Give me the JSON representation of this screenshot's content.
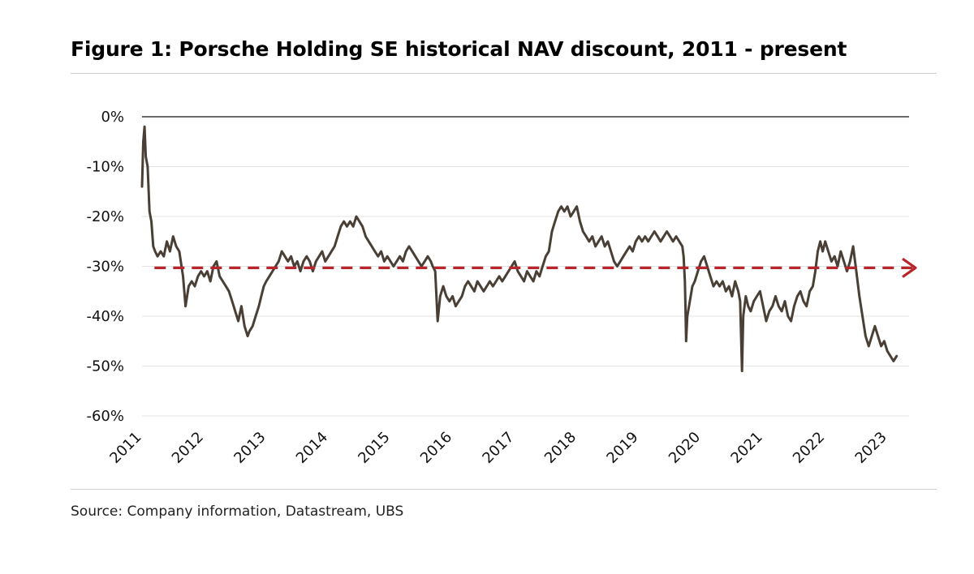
{
  "header": {
    "title": "Figure 1: Porsche Holding SE historical NAV discount, 2011 - present"
  },
  "footer": {
    "source": "Source: Company information, Datastream, UBS"
  },
  "colors": {
    "series": "#4a3f35",
    "average": "#b8262b",
    "grid": "#e3e3e3",
    "zero_line": "#111111"
  },
  "chart_data": {
    "type": "line",
    "title": "Figure 1: Porsche Holding SE historical NAV discount, 2011 - present",
    "xlabel": "",
    "ylabel": "",
    "x_tick_labels": [
      "2011",
      "2012",
      "2013",
      "2014",
      "2015",
      "2016",
      "2017",
      "2018",
      "2019",
      "2020",
      "2021",
      "2022",
      "2023"
    ],
    "y_tick_labels": [
      "0%",
      "-10%",
      "-20%",
      "-30%",
      "-40%",
      "-50%",
      "-60%"
    ],
    "y_ticks": [
      0,
      -10,
      -20,
      -30,
      -40,
      -50,
      -60
    ],
    "xlim": [
      2011.0,
      2023.35
    ],
    "ylim": [
      -60,
      0
    ],
    "grid": true,
    "legend": "none",
    "average_line": {
      "value": -30.3,
      "style": "dashed",
      "arrow": "right"
    },
    "series": [
      {
        "values": [
          [
            2011.0,
            -14
          ],
          [
            2011.02,
            -5
          ],
          [
            2011.04,
            -2
          ],
          [
            2011.06,
            -8
          ],
          [
            2011.09,
            -10
          ],
          [
            2011.12,
            -19
          ],
          [
            2011.15,
            -21
          ],
          [
            2011.18,
            -26
          ],
          [
            2011.21,
            -27
          ],
          [
            2011.25,
            -28
          ],
          [
            2011.3,
            -27
          ],
          [
            2011.35,
            -28
          ],
          [
            2011.4,
            -25
          ],
          [
            2011.45,
            -27
          ],
          [
            2011.5,
            -24
          ],
          [
            2011.55,
            -26
          ],
          [
            2011.6,
            -27
          ],
          [
            2011.66,
            -32
          ],
          [
            2011.7,
            -38
          ],
          [
            2011.75,
            -34
          ],
          [
            2011.8,
            -33
          ],
          [
            2011.85,
            -34
          ],
          [
            2011.9,
            -32
          ],
          [
            2011.95,
            -31
          ],
          [
            2012.0,
            -32
          ],
          [
            2012.05,
            -31
          ],
          [
            2012.1,
            -33
          ],
          [
            2012.15,
            -30
          ],
          [
            2012.2,
            -29
          ],
          [
            2012.25,
            -32
          ],
          [
            2012.3,
            -33
          ],
          [
            2012.35,
            -34
          ],
          [
            2012.4,
            -35
          ],
          [
            2012.45,
            -37
          ],
          [
            2012.5,
            -39
          ],
          [
            2012.55,
            -41
          ],
          [
            2012.6,
            -38
          ],
          [
            2012.65,
            -42
          ],
          [
            2012.7,
            -44
          ],
          [
            2012.73,
            -43
          ],
          [
            2012.78,
            -42
          ],
          [
            2012.83,
            -40
          ],
          [
            2012.88,
            -38
          ],
          [
            2012.92,
            -36
          ],
          [
            2012.96,
            -34
          ],
          [
            2013.0,
            -33
          ],
          [
            2013.05,
            -32
          ],
          [
            2013.1,
            -31
          ],
          [
            2013.15,
            -30
          ],
          [
            2013.2,
            -29
          ],
          [
            2013.25,
            -27
          ],
          [
            2013.3,
            -28
          ],
          [
            2013.35,
            -29
          ],
          [
            2013.4,
            -28
          ],
          [
            2013.45,
            -30
          ],
          [
            2013.5,
            -29
          ],
          [
            2013.55,
            -31
          ],
          [
            2013.6,
            -29
          ],
          [
            2013.65,
            -28
          ],
          [
            2013.7,
            -29
          ],
          [
            2013.75,
            -31
          ],
          [
            2013.8,
            -29
          ],
          [
            2013.85,
            -28
          ],
          [
            2013.9,
            -27
          ],
          [
            2013.95,
            -29
          ],
          [
            2014.0,
            -28
          ],
          [
            2014.05,
            -27
          ],
          [
            2014.1,
            -26
          ],
          [
            2014.15,
            -24
          ],
          [
            2014.2,
            -22
          ],
          [
            2014.25,
            -21
          ],
          [
            2014.3,
            -22
          ],
          [
            2014.35,
            -21
          ],
          [
            2014.4,
            -22
          ],
          [
            2014.45,
            -20
          ],
          [
            2014.5,
            -21
          ],
          [
            2014.55,
            -22
          ],
          [
            2014.6,
            -24
          ],
          [
            2014.65,
            -25
          ],
          [
            2014.7,
            -26
          ],
          [
            2014.75,
            -27
          ],
          [
            2014.8,
            -28
          ],
          [
            2014.85,
            -27
          ],
          [
            2014.9,
            -29
          ],
          [
            2014.95,
            -28
          ],
          [
            2015.0,
            -29
          ],
          [
            2015.05,
            -30
          ],
          [
            2015.1,
            -29
          ],
          [
            2015.15,
            -28
          ],
          [
            2015.2,
            -29
          ],
          [
            2015.25,
            -27
          ],
          [
            2015.3,
            -26
          ],
          [
            2015.35,
            -27
          ],
          [
            2015.4,
            -28
          ],
          [
            2015.45,
            -29
          ],
          [
            2015.5,
            -30
          ],
          [
            2015.55,
            -29
          ],
          [
            2015.6,
            -28
          ],
          [
            2015.65,
            -29
          ],
          [
            2015.68,
            -30
          ],
          [
            2015.72,
            -31
          ],
          [
            2015.76,
            -41
          ],
          [
            2015.8,
            -36
          ],
          [
            2015.85,
            -34
          ],
          [
            2015.9,
            -36
          ],
          [
            2015.95,
            -37
          ],
          [
            2016.0,
            -36
          ],
          [
            2016.05,
            -38
          ],
          [
            2016.1,
            -37
          ],
          [
            2016.15,
            -36
          ],
          [
            2016.2,
            -34
          ],
          [
            2016.25,
            -33
          ],
          [
            2016.3,
            -34
          ],
          [
            2016.35,
            -35
          ],
          [
            2016.4,
            -33
          ],
          [
            2016.45,
            -34
          ],
          [
            2016.5,
            -35
          ],
          [
            2016.55,
            -34
          ],
          [
            2016.6,
            -33
          ],
          [
            2016.65,
            -34
          ],
          [
            2016.7,
            -33
          ],
          [
            2016.75,
            -32
          ],
          [
            2016.8,
            -33
          ],
          [
            2016.85,
            -32
          ],
          [
            2016.9,
            -31
          ],
          [
            2016.95,
            -30
          ],
          [
            2017.0,
            -29
          ],
          [
            2017.05,
            -31
          ],
          [
            2017.1,
            -32
          ],
          [
            2017.15,
            -33
          ],
          [
            2017.2,
            -31
          ],
          [
            2017.25,
            -32
          ],
          [
            2017.3,
            -33
          ],
          [
            2017.35,
            -31
          ],
          [
            2017.4,
            -32
          ],
          [
            2017.45,
            -30
          ],
          [
            2017.5,
            -28
          ],
          [
            2017.55,
            -27
          ],
          [
            2017.6,
            -23
          ],
          [
            2017.65,
            -21
          ],
          [
            2017.7,
            -19
          ],
          [
            2017.75,
            -18
          ],
          [
            2017.8,
            -19
          ],
          [
            2017.85,
            -18
          ],
          [
            2017.9,
            -20
          ],
          [
            2017.95,
            -19
          ],
          [
            2018.0,
            -18
          ],
          [
            2018.05,
            -21
          ],
          [
            2018.1,
            -23
          ],
          [
            2018.15,
            -24
          ],
          [
            2018.2,
            -25
          ],
          [
            2018.25,
            -24
          ],
          [
            2018.3,
            -26
          ],
          [
            2018.35,
            -25
          ],
          [
            2018.4,
            -24
          ],
          [
            2018.45,
            -26
          ],
          [
            2018.5,
            -25
          ],
          [
            2018.55,
            -27
          ],
          [
            2018.6,
            -29
          ],
          [
            2018.65,
            -30
          ],
          [
            2018.7,
            -29
          ],
          [
            2018.75,
            -28
          ],
          [
            2018.8,
            -27
          ],
          [
            2018.85,
            -26
          ],
          [
            2018.9,
            -27
          ],
          [
            2018.95,
            -25
          ],
          [
            2019.0,
            -24
          ],
          [
            2019.05,
            -25
          ],
          [
            2019.1,
            -24
          ],
          [
            2019.15,
            -25
          ],
          [
            2019.2,
            -24
          ],
          [
            2019.25,
            -23
          ],
          [
            2019.3,
            -24
          ],
          [
            2019.35,
            -25
          ],
          [
            2019.4,
            -24
          ],
          [
            2019.45,
            -23
          ],
          [
            2019.5,
            -24
          ],
          [
            2019.55,
            -25
          ],
          [
            2019.6,
            -24
          ],
          [
            2019.65,
            -25
          ],
          [
            2019.7,
            -26
          ],
          [
            2019.72,
            -28
          ],
          [
            2019.74,
            -33
          ],
          [
            2019.75,
            -38
          ],
          [
            2019.76,
            -45
          ],
          [
            2019.78,
            -40
          ],
          [
            2019.82,
            -37
          ],
          [
            2019.86,
            -34
          ],
          [
            2019.9,
            -33
          ],
          [
            2019.95,
            -31
          ],
          [
            2020.0,
            -29
          ],
          [
            2020.05,
            -28
          ],
          [
            2020.1,
            -30
          ],
          [
            2020.15,
            -32
          ],
          [
            2020.2,
            -34
          ],
          [
            2020.25,
            -33
          ],
          [
            2020.3,
            -34
          ],
          [
            2020.35,
            -33
          ],
          [
            2020.4,
            -35
          ],
          [
            2020.45,
            -34
          ],
          [
            2020.5,
            -36
          ],
          [
            2020.55,
            -33
          ],
          [
            2020.6,
            -35
          ],
          [
            2020.63,
            -37
          ],
          [
            2020.66,
            -51
          ],
          [
            2020.68,
            -40
          ],
          [
            2020.72,
            -36
          ],
          [
            2020.76,
            -38
          ],
          [
            2020.8,
            -39
          ],
          [
            2020.85,
            -37
          ],
          [
            2020.9,
            -36
          ],
          [
            2020.95,
            -35
          ],
          [
            2021.0,
            -38
          ],
          [
            2021.05,
            -41
          ],
          [
            2021.1,
            -39
          ],
          [
            2021.15,
            -38
          ],
          [
            2021.2,
            -36
          ],
          [
            2021.25,
            -38
          ],
          [
            2021.3,
            -39
          ],
          [
            2021.35,
            -37
          ],
          [
            2021.4,
            -40
          ],
          [
            2021.45,
            -41
          ],
          [
            2021.5,
            -38
          ],
          [
            2021.55,
            -36
          ],
          [
            2021.6,
            -35
          ],
          [
            2021.65,
            -37
          ],
          [
            2021.7,
            -38
          ],
          [
            2021.75,
            -35
          ],
          [
            2021.8,
            -34
          ],
          [
            2021.84,
            -31
          ],
          [
            2021.88,
            -27
          ],
          [
            2021.92,
            -25
          ],
          [
            2021.96,
            -27
          ],
          [
            2022.0,
            -25
          ],
          [
            2022.05,
            -27
          ],
          [
            2022.1,
            -29
          ],
          [
            2022.15,
            -28
          ],
          [
            2022.2,
            -30
          ],
          [
            2022.25,
            -27
          ],
          [
            2022.3,
            -29
          ],
          [
            2022.35,
            -31
          ],
          [
            2022.4,
            -29
          ],
          [
            2022.45,
            -26
          ],
          [
            2022.5,
            -31
          ],
          [
            2022.55,
            -36
          ],
          [
            2022.6,
            -40
          ],
          [
            2022.65,
            -44
          ],
          [
            2022.7,
            -46
          ],
          [
            2022.75,
            -44
          ],
          [
            2022.8,
            -42
          ],
          [
            2022.85,
            -44
          ],
          [
            2022.9,
            -46
          ],
          [
            2022.95,
            -45
          ],
          [
            2023.0,
            -47
          ],
          [
            2023.05,
            -48
          ],
          [
            2023.1,
            -49
          ],
          [
            2023.15,
            -48
          ]
        ]
      }
    ]
  }
}
